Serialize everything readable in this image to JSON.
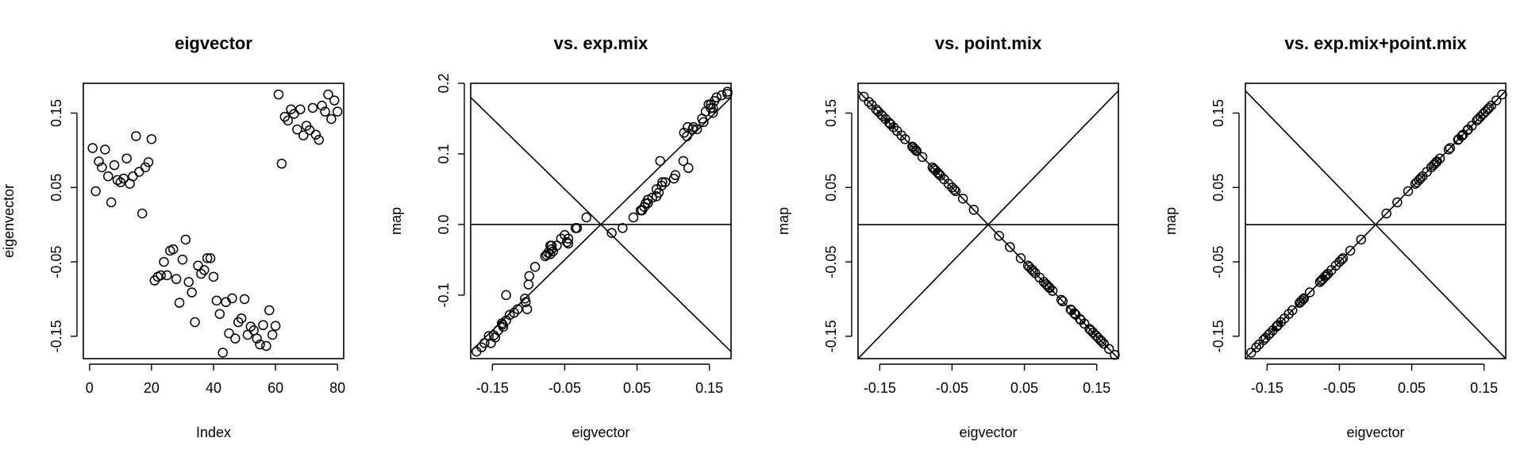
{
  "chart_data": [
    {
      "type": "scatter",
      "title": "eigvector",
      "xlabel": "Index",
      "ylabel": "eigenvector",
      "xlim": [
        -2,
        82
      ],
      "ylim": [
        -0.18,
        0.19
      ],
      "xticks": [
        0,
        20,
        40,
        60,
        80
      ],
      "xtick_labels": [
        "0",
        "20",
        "40",
        "60",
        "80"
      ],
      "yticks": [
        -0.15,
        -0.05,
        0.05,
        0.15
      ],
      "ytick_labels": [
        "-0.15",
        "-0.05",
        "0.05",
        "0.15"
      ],
      "reference_lines": [],
      "x": [
        1,
        2,
        3,
        4,
        5,
        6,
        7,
        8,
        9,
        10,
        11,
        12,
        13,
        14,
        15,
        16,
        17,
        18,
        19,
        20,
        21,
        22,
        23,
        24,
        25,
        26,
        27,
        28,
        29,
        30,
        31,
        32,
        33,
        34,
        35,
        36,
        37,
        38,
        39,
        40,
        41,
        42,
        43,
        44,
        45,
        46,
        47,
        48,
        49,
        50,
        51,
        52,
        53,
        54,
        55,
        56,
        57,
        58,
        59,
        60,
        61,
        62,
        63,
        64,
        65,
        66,
        67,
        68,
        69,
        70,
        71,
        72,
        73,
        74,
        75,
        76,
        77,
        78,
        79,
        80
      ],
      "y": [
        0.103,
        0.045,
        0.085,
        0.077,
        0.101,
        0.065,
        0.03,
        0.08,
        0.06,
        0.057,
        0.062,
        0.089,
        0.055,
        0.065,
        0.119,
        0.071,
        0.015,
        0.077,
        0.084,
        0.115,
        -0.075,
        -0.07,
        -0.068,
        -0.05,
        -0.068,
        -0.035,
        -0.033,
        -0.073,
        -0.105,
        -0.047,
        -0.02,
        -0.077,
        -0.091,
        -0.131,
        -0.055,
        -0.066,
        -0.061,
        -0.045,
        -0.045,
        -0.07,
        -0.102,
        -0.12,
        -0.172,
        -0.104,
        -0.146,
        -0.099,
        -0.153,
        -0.131,
        -0.126,
        -0.1,
        -0.148,
        -0.137,
        -0.142,
        -0.153,
        -0.161,
        -0.135,
        -0.163,
        -0.115,
        -0.148,
        -0.136,
        0.175,
        0.082,
        0.145,
        0.14,
        0.155,
        0.149,
        0.128,
        0.155,
        0.12,
        0.133,
        0.127,
        0.157,
        0.121,
        0.114,
        0.16,
        0.152,
        0.175,
        0.142,
        0.167,
        0.152
      ]
    },
    {
      "type": "scatter",
      "title": "vs. exp.mix",
      "xlabel": "eigvector",
      "ylabel": "map",
      "xlim": [
        -0.18,
        0.18
      ],
      "ylim": [
        -0.19,
        0.2
      ],
      "xticks": [
        -0.15,
        -0.05,
        0.05,
        0.15
      ],
      "xtick_labels": [
        "-0.15",
        "-0.05",
        "0.05",
        "0.15"
      ],
      "yticks": [
        -0.1,
        0.0,
        0.1,
        0.2
      ],
      "ytick_labels": [
        "-0.1",
        "0.0",
        "0.1",
        "0.2"
      ],
      "reference_lines": [
        {
          "slope": 1,
          "intercept": 0
        },
        {
          "slope": -1,
          "intercept": 0
        },
        {
          "h": 0
        }
      ],
      "x": [
        -0.172,
        -0.165,
        -0.161,
        -0.155,
        -0.152,
        -0.148,
        -0.146,
        -0.142,
        -0.137,
        -0.136,
        -0.135,
        -0.131,
        -0.131,
        -0.126,
        -0.12,
        -0.115,
        -0.105,
        -0.104,
        -0.102,
        -0.1,
        -0.099,
        -0.091,
        -0.077,
        -0.075,
        -0.073,
        -0.07,
        -0.07,
        -0.068,
        -0.068,
        -0.066,
        -0.061,
        -0.055,
        -0.05,
        -0.047,
        -0.045,
        -0.045,
        -0.035,
        -0.033,
        -0.02,
        0.015,
        0.03,
        0.045,
        0.055,
        0.057,
        0.06,
        0.062,
        0.065,
        0.065,
        0.071,
        0.077,
        0.077,
        0.08,
        0.082,
        0.084,
        0.085,
        0.089,
        0.101,
        0.103,
        0.114,
        0.115,
        0.119,
        0.12,
        0.121,
        0.127,
        0.128,
        0.133,
        0.14,
        0.142,
        0.145,
        0.149,
        0.152,
        0.152,
        0.155,
        0.155,
        0.157,
        0.16,
        0.167,
        0.175,
        0.175
      ],
      "y": [
        -0.18,
        -0.174,
        -0.168,
        -0.158,
        -0.168,
        -0.157,
        -0.16,
        -0.15,
        -0.14,
        -0.142,
        -0.145,
        -0.136,
        -0.1,
        -0.128,
        -0.125,
        -0.12,
        -0.105,
        -0.11,
        -0.12,
        -0.085,
        -0.073,
        -0.06,
        -0.045,
        -0.043,
        -0.04,
        -0.042,
        -0.03,
        -0.035,
        -0.03,
        -0.038,
        -0.03,
        -0.02,
        -0.015,
        -0.025,
        -0.02,
        -0.027,
        -0.005,
        -0.005,
        0.01,
        -0.012,
        -0.005,
        0.01,
        0.02,
        0.02,
        0.025,
        0.03,
        0.03,
        0.035,
        0.038,
        0.04,
        0.05,
        0.045,
        0.09,
        0.055,
        0.06,
        0.06,
        0.065,
        0.07,
        0.09,
        0.13,
        0.125,
        0.138,
        0.08,
        0.135,
        0.138,
        0.135,
        0.15,
        0.145,
        0.16,
        0.17,
        0.165,
        0.17,
        0.158,
        0.165,
        0.175,
        0.18,
        0.183,
        0.185,
        0.188
      ]
    },
    {
      "type": "scatter",
      "title": "vs. point.mix",
      "xlabel": "eigvector",
      "ylabel": "map",
      "xlim": [
        -0.18,
        0.18
      ],
      "ylim": [
        -0.18,
        0.19
      ],
      "xticks": [
        -0.15,
        -0.05,
        0.05,
        0.15
      ],
      "xtick_labels": [
        "-0.15",
        "-0.05",
        "0.05",
        "0.15"
      ],
      "yticks": [
        -0.15,
        -0.05,
        0.05,
        0.15
      ],
      "ytick_labels": [
        "-0.15",
        "-0.05",
        "0.05",
        "0.15"
      ],
      "reference_lines": [
        {
          "slope": 1,
          "intercept": 0
        },
        {
          "slope": -1,
          "intercept": 0
        },
        {
          "h": 0
        }
      ],
      "x": [
        -0.172,
        -0.165,
        -0.161,
        -0.155,
        -0.152,
        -0.148,
        -0.146,
        -0.142,
        -0.137,
        -0.136,
        -0.135,
        -0.131,
        -0.126,
        -0.12,
        -0.115,
        -0.105,
        -0.104,
        -0.102,
        -0.1,
        -0.099,
        -0.091,
        -0.077,
        -0.075,
        -0.073,
        -0.07,
        -0.068,
        -0.066,
        -0.061,
        -0.055,
        -0.05,
        -0.047,
        -0.045,
        -0.035,
        -0.02,
        0.015,
        0.03,
        0.045,
        0.055,
        0.057,
        0.06,
        0.062,
        0.065,
        0.071,
        0.077,
        0.08,
        0.082,
        0.084,
        0.085,
        0.089,
        0.101,
        0.103,
        0.114,
        0.115,
        0.119,
        0.12,
        0.121,
        0.127,
        0.128,
        0.133,
        0.14,
        0.142,
        0.145,
        0.149,
        0.152,
        0.155,
        0.157,
        0.16,
        0.167,
        0.175
      ],
      "y": [
        0.172,
        0.165,
        0.161,
        0.155,
        0.152,
        0.148,
        0.146,
        0.142,
        0.137,
        0.136,
        0.135,
        0.131,
        0.126,
        0.12,
        0.115,
        0.105,
        0.104,
        0.102,
        0.1,
        0.099,
        0.091,
        0.077,
        0.075,
        0.073,
        0.07,
        0.068,
        0.066,
        0.061,
        0.055,
        0.05,
        0.047,
        0.045,
        0.035,
        0.02,
        -0.015,
        -0.03,
        -0.045,
        -0.055,
        -0.057,
        -0.06,
        -0.062,
        -0.065,
        -0.071,
        -0.077,
        -0.08,
        -0.082,
        -0.084,
        -0.085,
        -0.089,
        -0.101,
        -0.103,
        -0.114,
        -0.115,
        -0.119,
        -0.12,
        -0.121,
        -0.127,
        -0.128,
        -0.133,
        -0.14,
        -0.142,
        -0.145,
        -0.149,
        -0.152,
        -0.155,
        -0.157,
        -0.16,
        -0.167,
        -0.175
      ]
    },
    {
      "type": "scatter",
      "title": "vs. exp.mix+point.mix",
      "xlabel": "eigvector",
      "ylabel": "map",
      "xlim": [
        -0.18,
        0.18
      ],
      "ylim": [
        -0.18,
        0.19
      ],
      "xticks": [
        -0.15,
        -0.05,
        0.05,
        0.15
      ],
      "xtick_labels": [
        "-0.15",
        "-0.05",
        "0.05",
        "0.15"
      ],
      "yticks": [
        -0.15,
        -0.05,
        0.05,
        0.15
      ],
      "ytick_labels": [
        "-0.15",
        "-0.05",
        "0.05",
        "0.15"
      ],
      "reference_lines": [
        {
          "slope": 1,
          "intercept": 0
        },
        {
          "slope": -1,
          "intercept": 0
        },
        {
          "h": 0
        }
      ],
      "x": [
        -0.172,
        -0.165,
        -0.161,
        -0.155,
        -0.152,
        -0.148,
        -0.146,
        -0.142,
        -0.137,
        -0.136,
        -0.135,
        -0.131,
        -0.126,
        -0.12,
        -0.115,
        -0.105,
        -0.104,
        -0.102,
        -0.1,
        -0.099,
        -0.091,
        -0.077,
        -0.075,
        -0.073,
        -0.07,
        -0.068,
        -0.066,
        -0.061,
        -0.055,
        -0.05,
        -0.047,
        -0.045,
        -0.035,
        -0.02,
        0.015,
        0.03,
        0.045,
        0.055,
        0.057,
        0.06,
        0.062,
        0.065,
        0.071,
        0.077,
        0.08,
        0.082,
        0.084,
        0.085,
        0.089,
        0.101,
        0.103,
        0.114,
        0.115,
        0.119,
        0.12,
        0.121,
        0.127,
        0.128,
        0.133,
        0.14,
        0.142,
        0.145,
        0.149,
        0.152,
        0.155,
        0.157,
        0.16,
        0.167,
        0.175
      ],
      "y": [
        -0.172,
        -0.165,
        -0.161,
        -0.155,
        -0.152,
        -0.148,
        -0.146,
        -0.142,
        -0.137,
        -0.136,
        -0.135,
        -0.131,
        -0.126,
        -0.12,
        -0.115,
        -0.105,
        -0.104,
        -0.102,
        -0.1,
        -0.099,
        -0.091,
        -0.077,
        -0.075,
        -0.073,
        -0.07,
        -0.068,
        -0.066,
        -0.061,
        -0.055,
        -0.05,
        -0.047,
        -0.045,
        -0.035,
        -0.02,
        0.015,
        0.03,
        0.045,
        0.055,
        0.057,
        0.06,
        0.062,
        0.065,
        0.071,
        0.077,
        0.08,
        0.082,
        0.084,
        0.085,
        0.089,
        0.101,
        0.103,
        0.114,
        0.115,
        0.119,
        0.12,
        0.121,
        0.127,
        0.128,
        0.133,
        0.14,
        0.142,
        0.145,
        0.149,
        0.152,
        0.155,
        0.157,
        0.16,
        0.167,
        0.175
      ]
    }
  ]
}
